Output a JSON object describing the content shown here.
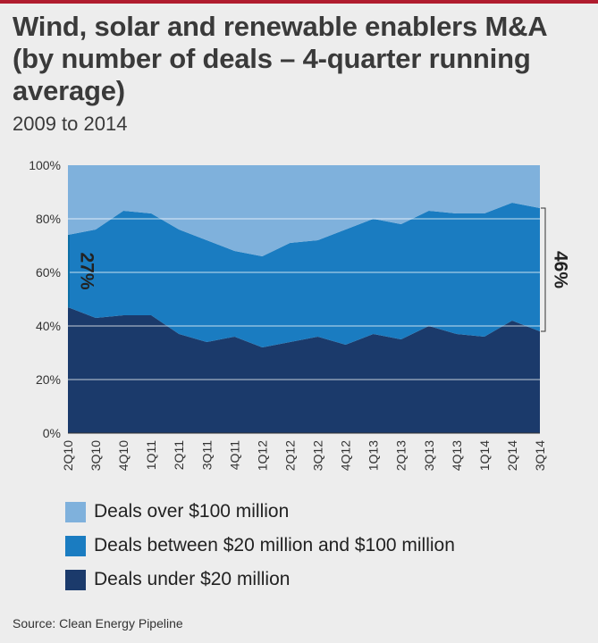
{
  "header": {
    "title": "Wind, solar and renewable enablers M&A (by number of deals – 4-quarter running average)",
    "subtitle": "2009 to 2014"
  },
  "source": "Source: Clean Energy Pipeline",
  "chart_data": {
    "type": "area",
    "stacked": true,
    "categories": [
      "2Q10",
      "3Q10",
      "4Q10",
      "1Q11",
      "2Q11",
      "3Q11",
      "4Q11",
      "1Q12",
      "2Q12",
      "3Q12",
      "4Q12",
      "1Q13",
      "2Q13",
      "3Q13",
      "4Q13",
      "1Q14",
      "2Q14",
      "3Q14"
    ],
    "series": [
      {
        "name": "Deals under $20 million",
        "color": "#1b3a6b",
        "values": [
          47,
          43,
          44,
          44,
          37,
          34,
          36,
          32,
          34,
          36,
          33,
          37,
          35,
          40,
          37,
          36,
          42,
          38
        ]
      },
      {
        "name": "Deals between $20 million and $100 million",
        "color": "#1a7cc1",
        "values": [
          27,
          33,
          39,
          38,
          39,
          38,
          32,
          34,
          37,
          36,
          43,
          43,
          43,
          43,
          45,
          46,
          44,
          46
        ]
      },
      {
        "name": "Deals over $100 million",
        "color": "#7fb1dc",
        "values": [
          26,
          24,
          17,
          18,
          24,
          28,
          32,
          34,
          29,
          28,
          24,
          20,
          22,
          17,
          18,
          18,
          14,
          16
        ]
      }
    ],
    "yticks": [
      "0%",
      "20%",
      "40%",
      "60%",
      "80%",
      "100%"
    ],
    "ylim": [
      0,
      100
    ],
    "grid": true,
    "legend_position": "bottom",
    "annotations": [
      {
        "label": "27%",
        "category": "2Q10",
        "from": 47,
        "to": 74
      },
      {
        "label": "46%",
        "category": "3Q14",
        "from": 38,
        "to": 84
      }
    ]
  }
}
